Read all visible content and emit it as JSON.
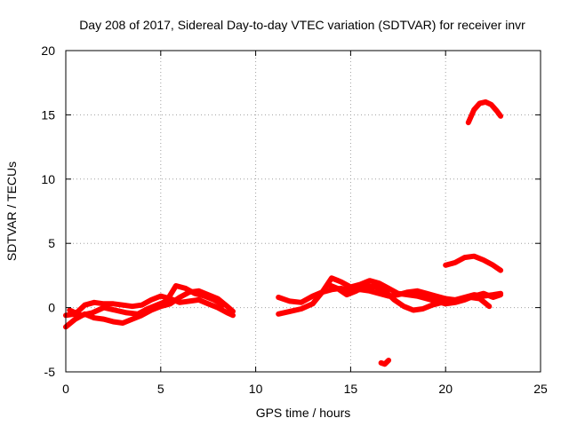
{
  "chart_data": {
    "type": "scatter",
    "title": "Day 208 of 2017, Sidereal Day-to-day VTEC variation (SDTVAR) for receiver invr",
    "xlabel": "GPS time / hours",
    "ylabel": "SDTVAR / TECUs",
    "xlim": [
      0,
      25
    ],
    "ylim": [
      -5,
      20
    ],
    "xticks": [
      0,
      5,
      10,
      15,
      20,
      25
    ],
    "yticks": [
      -5,
      0,
      5,
      10,
      15,
      20
    ],
    "grid": true,
    "series_color": "#ff0000",
    "series": [
      {
        "name": "band-a",
        "x": [
          0,
          0.5,
          1,
          1.5,
          2,
          2.5,
          3,
          3.5,
          4,
          4.5,
          5,
          5.5,
          6,
          6.5,
          7,
          7.5,
          8,
          8.5,
          8.8
        ],
        "y": [
          -0.6,
          -0.5,
          0.2,
          0.4,
          0.3,
          0.3,
          0.2,
          0.1,
          0.2,
          0.6,
          0.9,
          0.7,
          0.4,
          0.5,
          0.6,
          0.3,
          0.0,
          -0.4,
          -0.6
        ]
      },
      {
        "name": "band-b",
        "x": [
          0,
          0.5,
          1,
          1.5,
          2,
          2.5,
          3,
          3.5,
          4,
          4.5,
          5,
          5.5,
          6,
          6.5,
          7,
          7.5,
          8,
          8.5,
          8.8
        ],
        "y": [
          -1.5,
          -0.9,
          -0.5,
          -0.8,
          -0.9,
          -1.1,
          -1.2,
          -0.9,
          -0.6,
          -0.2,
          0.1,
          0.3,
          0.8,
          1.2,
          1.3,
          1.0,
          0.7,
          0.1,
          -0.3
        ]
      },
      {
        "name": "band-c",
        "x": [
          0.2,
          0.8,
          1.4,
          2,
          2.6,
          3.2,
          3.8,
          4.3,
          4.8,
          5.3,
          5.8,
          6.3,
          6.8,
          7.3,
          7.8,
          8.3
        ],
        "y": [
          -0.2,
          -0.6,
          -0.4,
          0.0,
          -0.2,
          -0.4,
          -0.5,
          -0.1,
          0.2,
          0.5,
          1.7,
          1.5,
          1.1,
          0.9,
          0.6,
          0.2
        ]
      },
      {
        "name": "band-d",
        "x": [
          11.2,
          11.8,
          12.4,
          13,
          13.5,
          14,
          14.5,
          15,
          15.5,
          16,
          16.5,
          17,
          17.5,
          18,
          18.5,
          19,
          19.5,
          20,
          20.5,
          21,
          21.5,
          22,
          22.5,
          22.9
        ],
        "y": [
          0.8,
          0.5,
          0.4,
          0.9,
          1.2,
          1.4,
          1.5,
          1.3,
          1.4,
          1.3,
          1.1,
          0.9,
          1.0,
          1.2,
          1.3,
          1.1,
          0.9,
          0.7,
          0.6,
          0.8,
          1.0,
          0.9,
          1.0,
          1.1
        ]
      },
      {
        "name": "band-e",
        "x": [
          11.2,
          11.8,
          12.4,
          13,
          13.5,
          14,
          14.5,
          15,
          15.5,
          16,
          16.5,
          17,
          17.5,
          18,
          18.5,
          19,
          19.5,
          20,
          20.5,
          21,
          21.5,
          22,
          22.5,
          22.9
        ],
        "y": [
          -0.5,
          -0.3,
          -0.1,
          0.3,
          1.2,
          2.3,
          2.0,
          1.6,
          1.8,
          2.1,
          1.9,
          1.5,
          1.1,
          1.0,
          0.9,
          0.7,
          0.5,
          0.3,
          0.4,
          0.6,
          0.9,
          1.1,
          0.8,
          1.0
        ]
      },
      {
        "name": "band-f",
        "x": [
          13.8,
          14.3,
          14.8,
          15.3,
          15.8,
          16.3,
          16.8,
          17.3,
          17.8,
          18.3,
          18.8,
          19.3,
          19.8,
          20.3,
          20.8,
          21.3,
          21.8,
          22.3
        ],
        "y": [
          1.8,
          1.5,
          1.0,
          1.3,
          1.7,
          1.6,
          1.3,
          0.6,
          0.1,
          -0.2,
          -0.1,
          0.2,
          0.4,
          0.5,
          0.6,
          0.8,
          0.7,
          0.1
        ]
      },
      {
        "name": "arc-upper",
        "x": [
          21.2,
          21.5,
          21.8,
          22.1,
          22.4,
          22.7,
          22.9
        ],
        "y": [
          14.4,
          15.4,
          15.9,
          16.0,
          15.8,
          15.3,
          14.9
        ]
      },
      {
        "name": "arc-middle",
        "x": [
          20,
          20.5,
          21,
          21.5,
          22,
          22.5,
          22.9
        ],
        "y": [
          3.3,
          3.5,
          3.9,
          4.0,
          3.7,
          3.3,
          2.9
        ]
      },
      {
        "name": "outlier",
        "x": [
          16.6,
          16.8,
          17.0
        ],
        "y": [
          -4.3,
          -4.4,
          -4.1
        ]
      }
    ]
  }
}
